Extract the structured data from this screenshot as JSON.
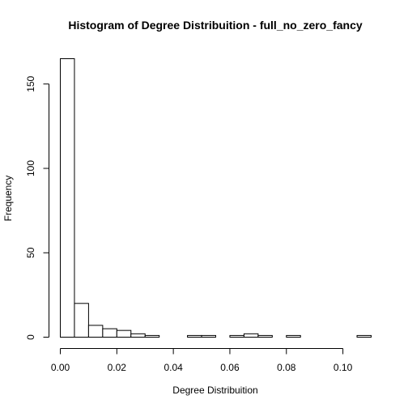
{
  "chart_data": {
    "type": "bar",
    "title": "Histogram of Degree Distribuition - full_no_zero_fancy",
    "xlabel": "Degree Distribuition",
    "ylabel": "Frequency",
    "bin_width": 0.005,
    "bins": [
      {
        "start": 0.0,
        "end": 0.005,
        "count": 165
      },
      {
        "start": 0.005,
        "end": 0.01,
        "count": 20
      },
      {
        "start": 0.01,
        "end": 0.015,
        "count": 7
      },
      {
        "start": 0.015,
        "end": 0.02,
        "count": 5
      },
      {
        "start": 0.02,
        "end": 0.025,
        "count": 4
      },
      {
        "start": 0.025,
        "end": 0.03,
        "count": 2
      },
      {
        "start": 0.03,
        "end": 0.035,
        "count": 1
      },
      {
        "start": 0.035,
        "end": 0.04,
        "count": 0
      },
      {
        "start": 0.04,
        "end": 0.045,
        "count": 0
      },
      {
        "start": 0.045,
        "end": 0.05,
        "count": 1
      },
      {
        "start": 0.05,
        "end": 0.055,
        "count": 1
      },
      {
        "start": 0.055,
        "end": 0.06,
        "count": 0
      },
      {
        "start": 0.06,
        "end": 0.065,
        "count": 1
      },
      {
        "start": 0.065,
        "end": 0.07,
        "count": 2
      },
      {
        "start": 0.07,
        "end": 0.075,
        "count": 1
      },
      {
        "start": 0.075,
        "end": 0.08,
        "count": 0
      },
      {
        "start": 0.08,
        "end": 0.085,
        "count": 1
      },
      {
        "start": 0.085,
        "end": 0.09,
        "count": 0
      },
      {
        "start": 0.09,
        "end": 0.095,
        "count": 0
      },
      {
        "start": 0.095,
        "end": 0.1,
        "count": 0
      },
      {
        "start": 0.1,
        "end": 0.105,
        "count": 0
      },
      {
        "start": 0.105,
        "end": 0.11,
        "count": 1
      }
    ],
    "xlim": [
      0,
      0.11
    ],
    "ylim": [
      0,
      165
    ],
    "x_ticks": [
      {
        "value": 0.0,
        "label": "0.00"
      },
      {
        "value": 0.02,
        "label": "0.02"
      },
      {
        "value": 0.04,
        "label": "0.04"
      },
      {
        "value": 0.06,
        "label": "0.06"
      },
      {
        "value": 0.08,
        "label": "0.08"
      },
      {
        "value": 0.1,
        "label": "0.10"
      }
    ],
    "y_ticks": [
      {
        "value": 0,
        "label": "0"
      },
      {
        "value": 50,
        "label": "50"
      },
      {
        "value": 100,
        "label": "100"
      },
      {
        "value": 150,
        "label": "150"
      }
    ],
    "grid": false,
    "bar_fill": "#ffffff",
    "bar_stroke": "#000000"
  }
}
